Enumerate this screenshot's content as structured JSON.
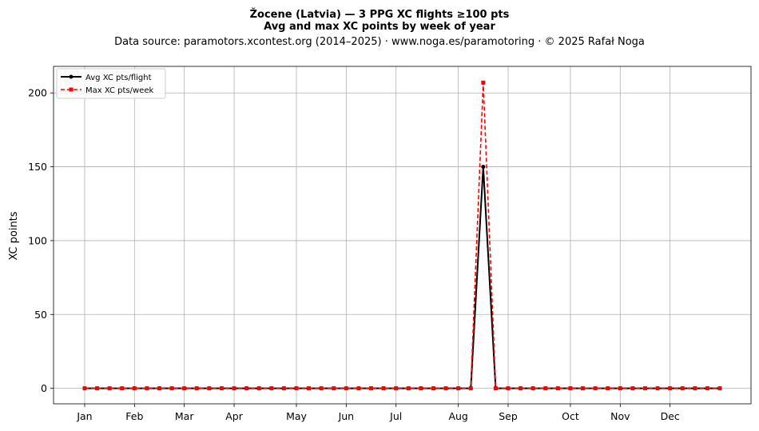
{
  "chart_data": {
    "type": "line",
    "title": "Žocene (Latvia)  —  3 PPG XC flights ≥100 pts",
    "subtitle": "Avg and max XC points by week of year",
    "source": "Data source: paramotors.xcontest.org (2014–2025)  ·  www.noga.es/paramotoring  ·  © 2025 Rafał Noga",
    "xlabel": "",
    "ylabel": "XC points",
    "xlim": [
      -1.5,
      54.5
    ],
    "ylim": [
      -10.5,
      218
    ],
    "yticks": [
      0,
      50,
      100,
      150,
      200
    ],
    "month_ticks": [
      {
        "label": "Jan",
        "week": 1
      },
      {
        "label": "Feb",
        "week": 5
      },
      {
        "label": "Mar",
        "week": 9
      },
      {
        "label": "Apr",
        "week": 13
      },
      {
        "label": "May",
        "week": 18
      },
      {
        "label": "Jun",
        "week": 22
      },
      {
        "label": "Jul",
        "week": 26
      },
      {
        "label": "Aug",
        "week": 31
      },
      {
        "label": "Sep",
        "week": 35
      },
      {
        "label": "Oct",
        "week": 40
      },
      {
        "label": "Nov",
        "week": 44
      },
      {
        "label": "Dec",
        "week": 48
      }
    ],
    "grid": true,
    "legend_position": "upper-left",
    "x": [
      1,
      2,
      3,
      4,
      5,
      6,
      7,
      8,
      9,
      10,
      11,
      12,
      13,
      14,
      15,
      16,
      17,
      18,
      19,
      20,
      21,
      22,
      23,
      24,
      25,
      26,
      27,
      28,
      29,
      30,
      31,
      32,
      33,
      34,
      35,
      36,
      37,
      38,
      39,
      40,
      41,
      42,
      43,
      44,
      45,
      46,
      47,
      48,
      49,
      50,
      51,
      52
    ],
    "series": [
      {
        "name": "Avg XC pts/flight",
        "color": "#000000",
        "line_style": "solid",
        "marker": "circle",
        "values": [
          0,
          0,
          0,
          0,
          0,
          0,
          0,
          0,
          0,
          0,
          0,
          0,
          0,
          0,
          0,
          0,
          0,
          0,
          0,
          0,
          0,
          0,
          0,
          0,
          0,
          0,
          0,
          0,
          0,
          0,
          0,
          0,
          150,
          0,
          0,
          0,
          0,
          0,
          0,
          0,
          0,
          0,
          0,
          0,
          0,
          0,
          0,
          0,
          0,
          0,
          0,
          0
        ]
      },
      {
        "name": "Max XC pts/week",
        "color": "#ff0000",
        "line_style": "dashed",
        "marker": "square",
        "values": [
          0,
          0,
          0,
          0,
          0,
          0,
          0,
          0,
          0,
          0,
          0,
          0,
          0,
          0,
          0,
          0,
          0,
          0,
          0,
          0,
          0,
          0,
          0,
          0,
          0,
          0,
          0,
          0,
          0,
          0,
          0,
          0,
          207,
          0,
          0,
          0,
          0,
          0,
          0,
          0,
          0,
          0,
          0,
          0,
          0,
          0,
          0,
          0,
          0,
          0,
          0,
          0
        ]
      }
    ]
  }
}
